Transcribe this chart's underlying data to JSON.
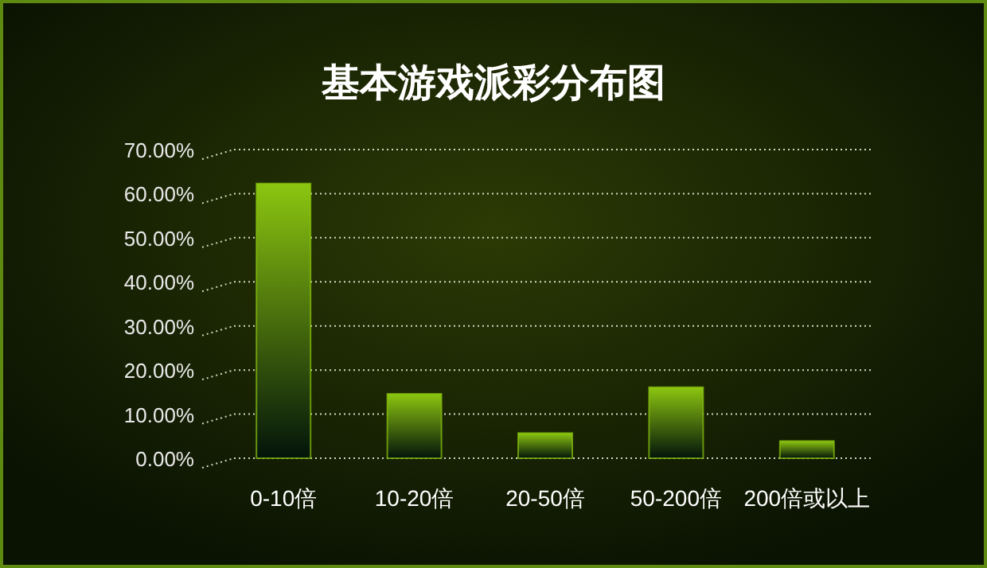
{
  "chart_data": {
    "type": "bar",
    "title": "基本游戏派彩分布图",
    "categories": [
      "0-10倍",
      "10-20倍",
      "20-50倍",
      "50-200倍",
      "200倍或以上"
    ],
    "values": [
      62.3,
      14.6,
      5.7,
      16.1,
      3.9
    ],
    "color": "#8cc610",
    "ylim": [
      0,
      70
    ],
    "yticks": [
      {
        "value": 0,
        "label": "0.00%"
      },
      {
        "value": 10,
        "label": "10.00%"
      },
      {
        "value": 20,
        "label": "20.00%"
      },
      {
        "value": 30,
        "label": "30.00%"
      },
      {
        "value": 40,
        "label": "40.00%"
      },
      {
        "value": 50,
        "label": "50.00%"
      },
      {
        "value": 60,
        "label": "60.00%"
      },
      {
        "value": 70,
        "label": "70.00%"
      }
    ],
    "grid": "y"
  }
}
